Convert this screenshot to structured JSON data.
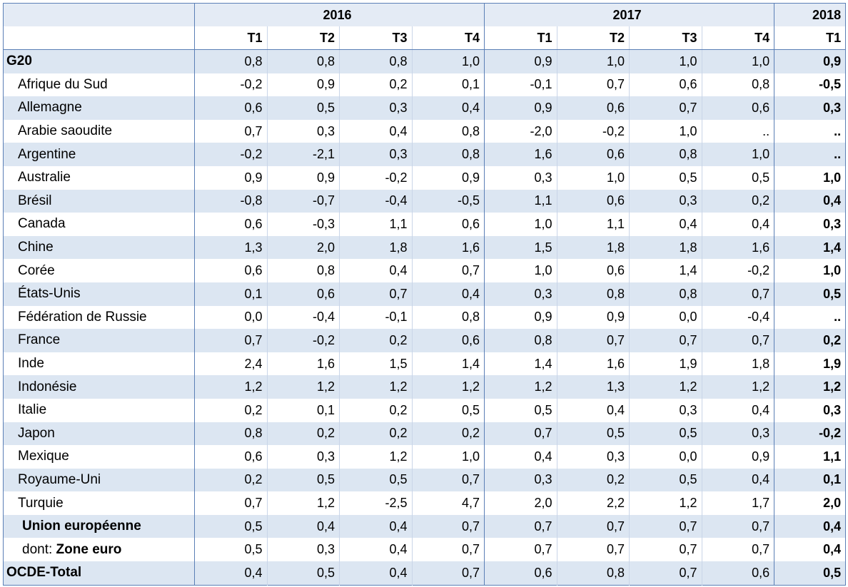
{
  "table": {
    "years": [
      "2016",
      "2017",
      "2018"
    ],
    "quarters": [
      "T1",
      "T2",
      "T3",
      "T4",
      "T1",
      "T2",
      "T3",
      "T4",
      "T1"
    ],
    "rows": [
      {
        "label": "G20",
        "values": [
          "0,8",
          "0,8",
          "0,8",
          "1,0",
          "0,9",
          "1,0",
          "1,0",
          "1,0",
          "0,9"
        ]
      },
      {
        "label": "Afrique du Sud",
        "values": [
          "-0,2",
          "0,9",
          "0,2",
          "0,1",
          "-0,1",
          "0,7",
          "0,6",
          "0,8",
          "-0,5"
        ]
      },
      {
        "label": "Allemagne",
        "values": [
          "0,6",
          "0,5",
          "0,3",
          "0,4",
          "0,9",
          "0,6",
          "0,7",
          "0,6",
          "0,3"
        ]
      },
      {
        "label": "Arabie saoudite",
        "values": [
          "0,7",
          "0,3",
          "0,4",
          "0,8",
          "-2,0",
          "-0,2",
          "1,0",
          "..",
          ".."
        ]
      },
      {
        "label": "Argentine",
        "values": [
          "-0,2",
          "-2,1",
          "0,3",
          "0,8",
          "1,6",
          "0,6",
          "0,8",
          "1,0",
          ".."
        ]
      },
      {
        "label": "Australie",
        "values": [
          "0,9",
          "0,9",
          "-0,2",
          "0,9",
          "0,3",
          "1,0",
          "0,5",
          "0,5",
          "1,0"
        ]
      },
      {
        "label": "Brésil",
        "values": [
          "-0,8",
          "-0,7",
          "-0,4",
          "-0,5",
          "1,1",
          "0,6",
          "0,3",
          "0,2",
          "0,4"
        ]
      },
      {
        "label": "Canada",
        "values": [
          "0,6",
          "-0,3",
          "1,1",
          "0,6",
          "1,0",
          "1,1",
          "0,4",
          "0,4",
          "0,3"
        ]
      },
      {
        "label": "Chine",
        "values": [
          "1,3",
          "2,0",
          "1,8",
          "1,6",
          "1,5",
          "1,8",
          "1,8",
          "1,6",
          "1,4"
        ]
      },
      {
        "label": "Corée",
        "values": [
          "0,6",
          "0,8",
          "0,4",
          "0,7",
          "1,0",
          "0,6",
          "1,4",
          "-0,2",
          "1,0"
        ]
      },
      {
        "label": "États-Unis",
        "values": [
          "0,1",
          "0,6",
          "0,7",
          "0,4",
          "0,3",
          "0,8",
          "0,8",
          "0,7",
          "0,5"
        ]
      },
      {
        "label": "Fédération de Russie",
        "values": [
          "0,0",
          "-0,4",
          "-0,1",
          "0,8",
          "0,9",
          "0,9",
          "0,0",
          "-0,4",
          ".."
        ]
      },
      {
        "label": "France",
        "values": [
          "0,7",
          "-0,2",
          "0,2",
          "0,6",
          "0,8",
          "0,7",
          "0,7",
          "0,7",
          "0,2"
        ]
      },
      {
        "label": "Inde",
        "values": [
          "2,4",
          "1,6",
          "1,5",
          "1,4",
          "1,4",
          "1,6",
          "1,9",
          "1,8",
          "1,9"
        ]
      },
      {
        "label": "Indonésie",
        "values": [
          "1,2",
          "1,2",
          "1,2",
          "1,2",
          "1,2",
          "1,3",
          "1,2",
          "1,2",
          "1,2"
        ]
      },
      {
        "label": "Italie",
        "values": [
          "0,2",
          "0,1",
          "0,2",
          "0,5",
          "0,5",
          "0,4",
          "0,3",
          "0,4",
          "0,3"
        ]
      },
      {
        "label": "Japon",
        "values": [
          "0,8",
          "0,2",
          "0,2",
          "0,2",
          "0,7",
          "0,5",
          "0,5",
          "0,3",
          "-0,2"
        ]
      },
      {
        "label": "Mexique",
        "values": [
          "0,6",
          "0,3",
          "1,2",
          "1,0",
          "0,4",
          "0,3",
          "0,0",
          "0,9",
          "1,1"
        ]
      },
      {
        "label": "Royaume-Uni",
        "values": [
          "0,2",
          "0,5",
          "0,5",
          "0,7",
          "0,3",
          "0,2",
          "0,5",
          "0,4",
          "0,1"
        ]
      },
      {
        "label": "Turquie",
        "values": [
          "0,7",
          "1,2",
          "-2,5",
          "4,7",
          "2,0",
          "2,2",
          "1,2",
          "1,7",
          "2,0"
        ]
      },
      {
        "label": "Union européenne",
        "values": [
          "0,5",
          "0,4",
          "0,4",
          "0,7",
          "0,7",
          "0,7",
          "0,7",
          "0,7",
          "0,4"
        ]
      },
      {
        "prefix": "dont:",
        "label": "Zone euro",
        "values": [
          "0,5",
          "0,3",
          "0,4",
          "0,7",
          "0,7",
          "0,7",
          "0,7",
          "0,7",
          "0,4"
        ]
      },
      {
        "label": "OCDE-Total",
        "values": [
          "0,4",
          "0,5",
          "0,4",
          "0,7",
          "0,6",
          "0,8",
          "0,7",
          "0,6",
          "0,5"
        ]
      }
    ]
  }
}
